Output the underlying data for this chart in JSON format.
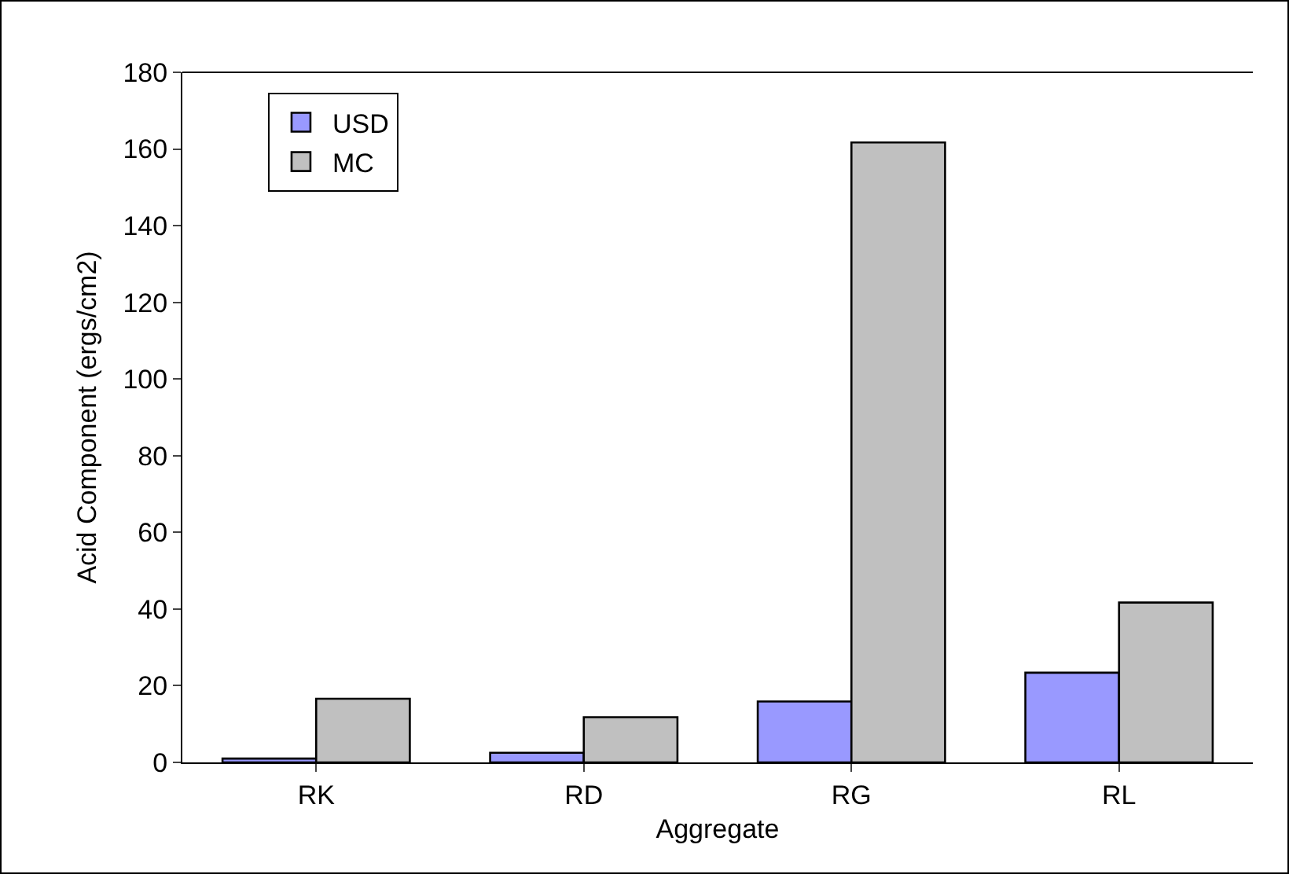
{
  "chart_data": {
    "type": "bar",
    "xlabel": "Aggregate",
    "ylabel": "Acid Component (ergs/cm2)",
    "categories": [
      "RK",
      "RD",
      "RG",
      "RL"
    ],
    "series": [
      {
        "name": "USD",
        "color": "#9999ff",
        "values": [
          1,
          2.5,
          15.9,
          23.4
        ]
      },
      {
        "name": "MC",
        "color": "#c0c0c0",
        "values": [
          16.6,
          11.8,
          161.7,
          41.7
        ]
      }
    ],
    "ylim": [
      0,
      180
    ],
    "yticks": [
      0,
      20,
      40,
      60,
      80,
      100,
      120,
      140,
      160,
      180
    ],
    "grid": false,
    "legend": "top left"
  }
}
